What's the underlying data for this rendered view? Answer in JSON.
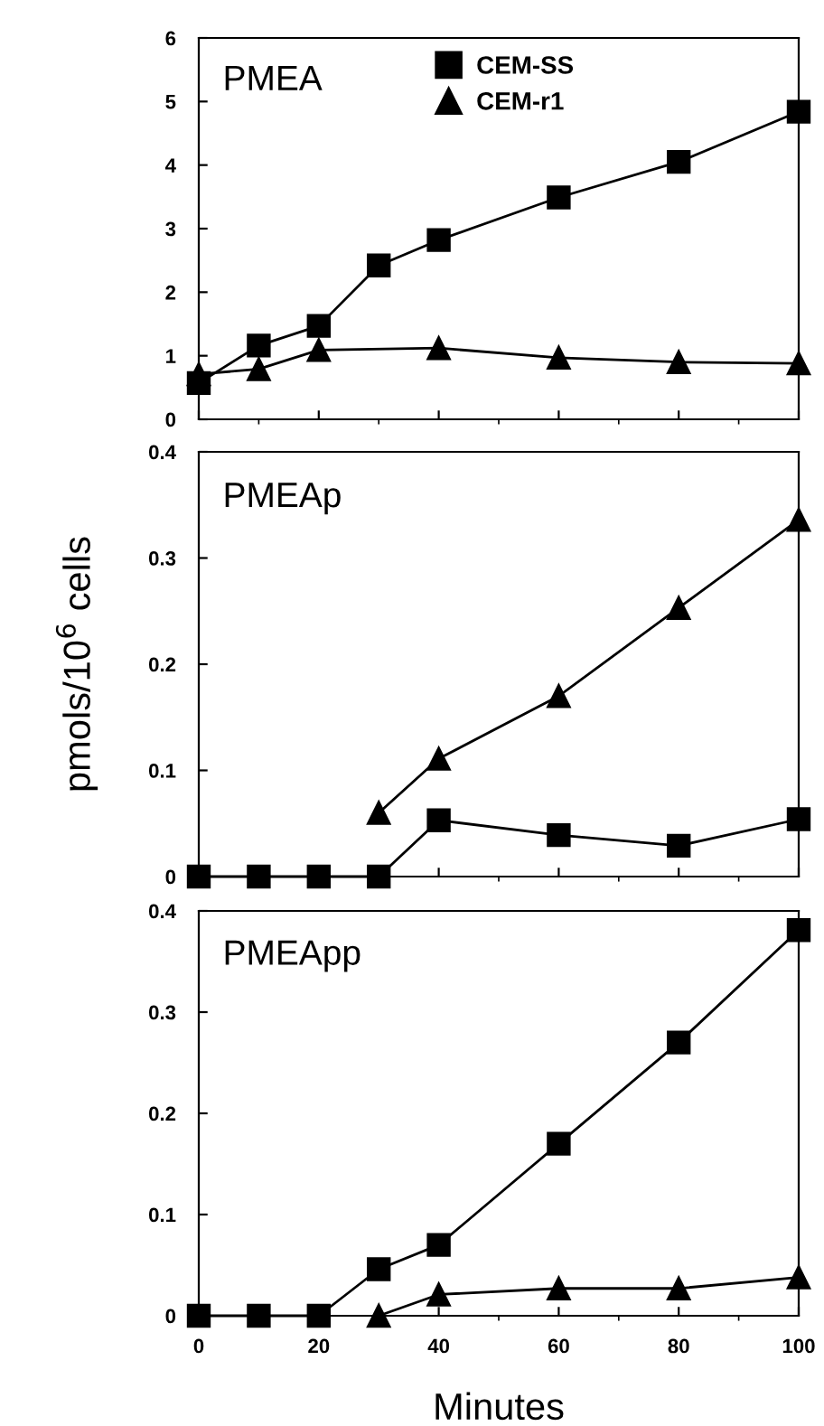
{
  "chart_data": [
    {
      "type": "line",
      "title": "PMEA",
      "xlim": [
        0,
        100
      ],
      "xticks": [
        0,
        20,
        40,
        60,
        80,
        100
      ],
      "ylim": [
        0,
        6
      ],
      "yticks": [
        0,
        1,
        2,
        3,
        4,
        5,
        6
      ],
      "tick_labels": "y",
      "legend": "top",
      "grid": false,
      "series": [
        {
          "name": "CEM-SS",
          "color": "#000000",
          "marker": "square",
          "x": [
            0,
            10,
            20,
            30,
            40,
            60,
            80,
            100
          ],
          "values": [
            0.57,
            1.16,
            1.47,
            2.42,
            2.82,
            3.49,
            4.05,
            4.84
          ]
        },
        {
          "name": "CEM-r1",
          "color": "#000000",
          "marker": "triangle",
          "x": [
            0,
            10,
            20,
            40,
            60,
            80,
            100
          ],
          "values": [
            0.71,
            0.79,
            1.09,
            1.12,
            0.97,
            0.9,
            0.88
          ]
        }
      ]
    },
    {
      "type": "line",
      "title": "PMEAp",
      "ylabel": "pmols/10$^{6}$ cells",
      "xlim": [
        0,
        100
      ],
      "xticks": [
        0,
        20,
        40,
        60,
        80,
        100
      ],
      "ylim": [
        0,
        0.4
      ],
      "yticks": [
        0,
        0.1,
        0.2,
        0.3,
        0.4
      ],
      "tick_labels": "y",
      "grid": false,
      "series": [
        {
          "color": "#000000",
          "marker": "square",
          "x": [
            0,
            10,
            20,
            30,
            40,
            60,
            80,
            100
          ],
          "values": [
            0,
            0,
            0,
            0,
            0.053,
            0.039,
            0.029,
            0.054
          ]
        },
        {
          "color": "#000000",
          "marker": "triangle",
          "x": [
            30,
            40,
            60,
            80,
            100
          ],
          "values": [
            0.06,
            0.111,
            0.17,
            0.253,
            0.336
          ]
        }
      ]
    },
    {
      "type": "line",
      "title": "PMEApp",
      "xlabel": "Minutes",
      "xlim": [
        0,
        100
      ],
      "xticks": [
        0,
        20,
        40,
        60,
        80,
        100
      ],
      "ylim": [
        0,
        0.4
      ],
      "yticks": [
        0,
        0.1,
        0.2,
        0.3,
        0.4
      ],
      "grid": false,
      "series": [
        {
          "color": "#000000",
          "marker": "square",
          "x": [
            0,
            10,
            20,
            30,
            40,
            60,
            80,
            100
          ],
          "values": [
            0,
            0,
            0,
            0.046,
            0.07,
            0.17,
            0.27,
            0.381
          ]
        },
        {
          "color": "#000000",
          "marker": "triangle",
          "x": [
            30,
            40,
            60,
            80,
            100
          ],
          "values": [
            0,
            0.021,
            0.027,
            0.027,
            0.038
          ]
        }
      ]
    }
  ]
}
